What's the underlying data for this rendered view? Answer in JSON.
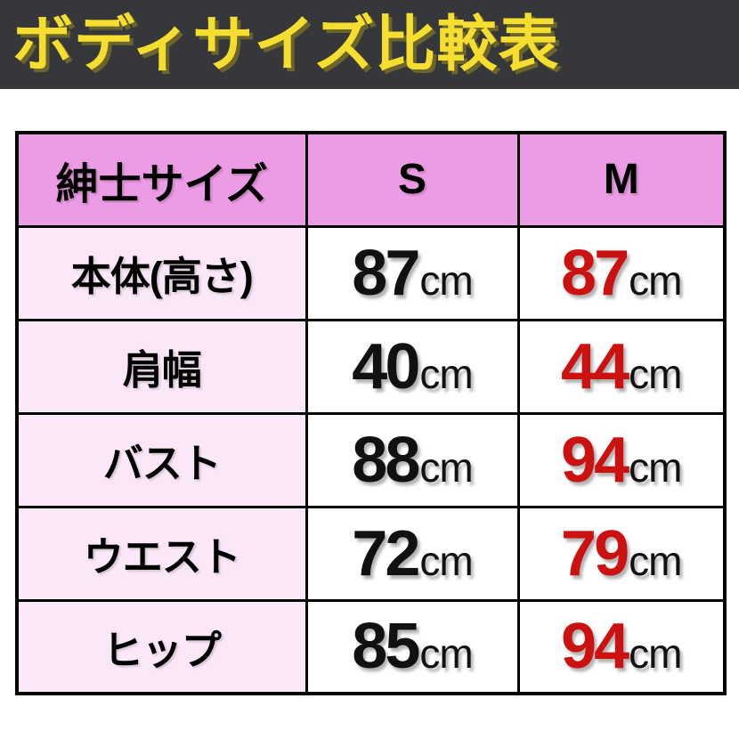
{
  "title": "ボディサイズ比較表",
  "colors": {
    "title_bar_bg": "#35373a",
    "title_text": "#f6de31",
    "header_row_bg": "#ec9ce4",
    "label_col_bg": "#fae7f8",
    "value_black": "#111111",
    "value_red": "#cc1111",
    "border": "#000000"
  },
  "table": {
    "header": {
      "label": "紳士サイズ",
      "col_s": "S",
      "col_m": "M"
    },
    "rows": [
      {
        "label": "本体(高さ)",
        "s": "87",
        "m": "87",
        "unit": "cm"
      },
      {
        "label": "肩幅",
        "s": "40",
        "m": "44",
        "unit": "cm"
      },
      {
        "label": "バスト",
        "s": "88",
        "m": "94",
        "unit": "cm"
      },
      {
        "label": "ウエスト",
        "s": "72",
        "m": "79",
        "unit": "cm"
      },
      {
        "label": "ヒップ",
        "s": "85",
        "m": "94",
        "unit": "cm"
      }
    ]
  },
  "chart_data": {
    "type": "table",
    "title": "ボディサイズ比較表",
    "columns": [
      "紳士サイズ",
      "S",
      "M"
    ],
    "rows": [
      [
        "本体(高さ)",
        "87cm",
        "87cm"
      ],
      [
        "肩幅",
        "40cm",
        "44cm"
      ],
      [
        "バスト",
        "88cm",
        "94cm"
      ],
      [
        "ウエスト",
        "72cm",
        "79cm"
      ],
      [
        "ヒップ",
        "85cm",
        "94cm"
      ]
    ],
    "series": [
      {
        "name": "S",
        "values": [
          87,
          40,
          88,
          72,
          85
        ],
        "unit": "cm",
        "color": "#111111"
      },
      {
        "name": "M",
        "values": [
          87,
          44,
          94,
          79,
          94
        ],
        "unit": "cm",
        "color": "#cc1111"
      }
    ]
  }
}
